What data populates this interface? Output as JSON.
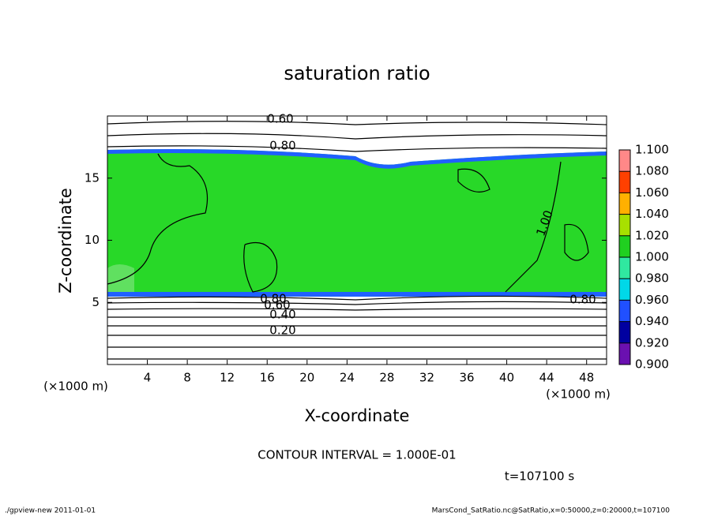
{
  "chart_data": {
    "type": "contour",
    "title": "saturation ratio",
    "x_label": "X-coordinate",
    "y_label": "Z-coordinate",
    "x_unit": "(×1000 m)",
    "y_unit": "(×1000 m)",
    "xlim": [
      0,
      50
    ],
    "ylim": [
      0,
      20
    ],
    "xticks": [
      4,
      8,
      12,
      16,
      20,
      24,
      28,
      32,
      36,
      40,
      44,
      48
    ],
    "yticks": [
      5,
      10,
      15
    ],
    "contour_labels": [
      "0.60",
      "0.80",
      "1.00",
      "0.80",
      "0.60",
      "0.40",
      "0.20",
      "0.80"
    ],
    "contour_interval": "CONTOUR INTERVAL = 1.000E-01",
    "time": "t=107100 s",
    "footer_left": "./gpview-new  2011-01-01",
    "footer_right": "MarsCond_SatRatio.nc@SatRatio,x=0:50000,z=0:20000,t=107100",
    "colorbar": {
      "ticks": [
        {
          "value": 0.9,
          "label": "0.900"
        },
        {
          "value": 0.92,
          "label": "0.920"
        },
        {
          "value": 0.94,
          "label": "0.940"
        },
        {
          "value": 0.96,
          "label": "0.960"
        },
        {
          "value": 0.98,
          "label": "0.980"
        },
        {
          "value": 1.0,
          "label": "1.000"
        },
        {
          "value": 1.02,
          "label": "1.020"
        },
        {
          "value": 1.04,
          "label": "1.040"
        },
        {
          "value": 1.06,
          "label": "1.060"
        },
        {
          "value": 1.08,
          "label": "1.080"
        },
        {
          "value": 1.1,
          "label": "1.100"
        }
      ],
      "colors": [
        "#6a10b0",
        "#0000a0",
        "#2050ff",
        "#00d8e8",
        "#30e8a0",
        "#20d020",
        "#a8e000",
        "#ffb000",
        "#ff4000",
        "#ff8888"
      ]
    }
  }
}
